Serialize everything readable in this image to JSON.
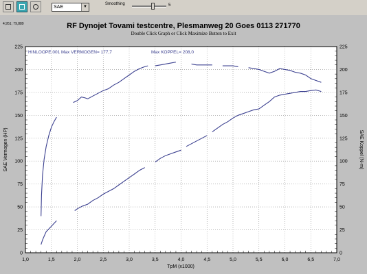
{
  "toolbar": {
    "select_value": "SAE",
    "smoothing_label": "Smoothing",
    "smoothing_value": "5",
    "smoothing_level": 0.62
  },
  "cursor_readout": "4,951; 79,889",
  "chart_data": {
    "type": "line",
    "title": "RF Dynojet Tovami testcentre, Plesmanweg 20 Goes 0113 271770",
    "subtitle": "Double Click Graph or Click Maximize Button to Exit",
    "xlabel": "TpM (x1000)",
    "ylabel_left": "SAE Vermogen (HP)",
    "ylabel_right": "SAE Koppel (N-m)",
    "xlim": [
      1.0,
      7.0
    ],
    "ylim": [
      0,
      225
    ],
    "x_ticks": [
      "1,0",
      "1,5",
      "2,0",
      "2,5",
      "3,0",
      "3,5",
      "4,0",
      "4,5",
      "5,0",
      "5,5",
      "6,0",
      "6,5",
      "7,0"
    ],
    "y_ticks": [
      "0",
      "25",
      "50",
      "75",
      "100",
      "125",
      "150",
      "175",
      "200",
      "225"
    ],
    "grid": true,
    "legend_text": {
      "file": "HINLOOPE.001",
      "max_power": "Max VERMOGEN= 177,7",
      "max_torque": "Max KOPPEL= 208,0"
    },
    "series": [
      {
        "axis": "right",
        "segments": [
          {
            "x": [
              1.3,
              1.31,
              1.33,
              1.36,
              1.4,
              1.45,
              1.5,
              1.55,
              1.6
            ],
            "y": [
              40,
              63,
              85,
              102,
              116,
              128,
              137,
              143,
              148
            ]
          },
          {
            "x": [
              1.92,
              2.0,
              2.08,
              2.15,
              2.2,
              2.3,
              2.4,
              2.5,
              2.6,
              2.7,
              2.8,
              2.9,
              3.0,
              3.1,
              3.2,
              3.3,
              3.36
            ],
            "y": [
              164,
              166,
              170,
              169,
              168,
              171,
              174,
              177,
              179,
              183,
              186,
              190,
              194,
              198,
              201,
              203,
              204
            ]
          },
          {
            "x": [
              3.5,
              3.6,
              3.7,
              3.8,
              3.9
            ],
            "y": [
              204,
              205,
              206,
              207,
              208
            ]
          },
          {
            "x": [
              4.2,
              4.3,
              4.4,
              4.5,
              4.6
            ],
            "y": [
              206,
              205,
              205,
              205,
              205
            ]
          },
          {
            "x": [
              4.8,
              4.9,
              5.0,
              5.1
            ],
            "y": [
              204,
              204,
              204,
              203
            ]
          },
          {
            "x": [
              5.3,
              5.4,
              5.5,
              5.6,
              5.7,
              5.8,
              5.9,
              6.0,
              6.1,
              6.2,
              6.3,
              6.4,
              6.5,
              6.6,
              6.7
            ],
            "y": [
              202,
              201,
              200,
              198,
              196,
              198,
              201,
              200,
              199,
              197,
              196,
              194,
              190,
              188,
              186
            ]
          }
        ]
      },
      {
        "axis": "left",
        "segments": [
          {
            "x": [
              1.3,
              1.33,
              1.36,
              1.4,
              1.45,
              1.5,
              1.55,
              1.6
            ],
            "y": [
              9,
              14,
              18,
              23,
              26,
              29,
              32,
              35
            ]
          },
          {
            "x": [
              1.95,
              2.0,
              2.1,
              2.2,
              2.3,
              2.4,
              2.5,
              2.6,
              2.7,
              2.8,
              2.9,
              3.0,
              3.1,
              3.2,
              3.3
            ],
            "y": [
              46,
              48,
              51,
              53,
              57,
              60,
              64,
              67,
              70,
              74,
              78,
              82,
              86,
              90,
              93
            ]
          },
          {
            "x": [
              3.5,
              3.6,
              3.7,
              3.8,
              3.9,
              4.0
            ],
            "y": [
              99,
              103,
              106,
              108,
              110,
              112
            ]
          },
          {
            "x": [
              4.1,
              4.2,
              4.3,
              4.4,
              4.5
            ],
            "y": [
              116,
              119,
              122,
              125,
              128
            ]
          },
          {
            "x": [
              4.6,
              4.7,
              4.8,
              4.9,
              5.0,
              5.1,
              5.2,
              5.3,
              5.4,
              5.5,
              5.6,
              5.7,
              5.8,
              5.9,
              6.0,
              6.1,
              6.2,
              6.3,
              6.4,
              6.5,
              6.6,
              6.7
            ],
            "y": [
              132,
              136,
              140,
              143,
              147,
              150,
              152,
              154,
              156,
              157,
              161,
              165,
              170,
              172,
              173,
              174,
              175,
              176,
              176,
              177,
              177.7,
              176
            ]
          }
        ]
      }
    ]
  },
  "colors": {
    "curve": "#3a3f8f",
    "grid": "#8a8a8a",
    "plot_bg": "#ffffff",
    "frame": "#000000"
  }
}
